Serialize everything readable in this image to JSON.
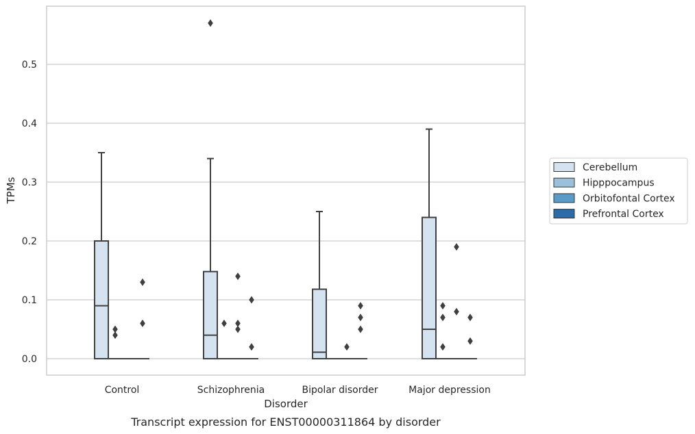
{
  "chart_data": {
    "type": "box",
    "title": "",
    "caption": "Transcript expression for ENST00000311864 by disorder",
    "xlabel": "Disorder",
    "ylabel": "TPMs",
    "ylim": [
      -0.028,
      0.6
    ],
    "yticks": [
      "0.0",
      "0.1",
      "0.2",
      "0.3",
      "0.4",
      "0.5"
    ],
    "ytick_values": [
      0.0,
      0.1,
      0.2,
      0.3,
      0.4,
      0.5
    ],
    "grid": "horizontal",
    "legend_position": "right",
    "categories": [
      "Control",
      "Schizophrenia",
      "Bipolar disorder",
      "Major depression"
    ],
    "series": [
      {
        "name": "Cerebellum",
        "color": "#d5e3f0",
        "boxes": [
          {
            "whislo": 0.0,
            "q1": 0.0,
            "med": 0.09,
            "q3": 0.2,
            "whishi": 0.35,
            "fliers": []
          },
          {
            "whislo": 0.0,
            "q1": 0.0,
            "med": 0.04,
            "q3": 0.148,
            "whishi": 0.34,
            "fliers": [
              0.57
            ]
          },
          {
            "whislo": 0.0,
            "q1": 0.0,
            "med": 0.011,
            "q3": 0.118,
            "whishi": 0.25,
            "fliers": []
          },
          {
            "whislo": 0.0,
            "q1": 0.0,
            "med": 0.05,
            "q3": 0.24,
            "whishi": 0.39,
            "fliers": []
          }
        ]
      },
      {
        "name": "Hipppocampus",
        "color": "#9ac0db",
        "boxes": [
          {
            "whislo": 0.0,
            "q1": 0.0,
            "med": 0.0,
            "q3": 0.0,
            "whishi": 0.0,
            "fliers": [
              0.05,
              0.04
            ]
          },
          {
            "whislo": 0.0,
            "q1": 0.0,
            "med": 0.0,
            "q3": 0.0,
            "whishi": 0.0,
            "fliers": [
              0.06
            ]
          },
          {
            "whislo": 0.0,
            "q1": 0.0,
            "med": 0.0,
            "q3": 0.0,
            "whishi": 0.0,
            "fliers": []
          },
          {
            "whislo": 0.0,
            "q1": 0.0,
            "med": 0.0,
            "q3": 0.0,
            "whishi": 0.0,
            "fliers": [
              0.09,
              0.07,
              0.02
            ]
          }
        ]
      },
      {
        "name": "Orbitofontal Cortex",
        "color": "#5a9bc7",
        "boxes": [
          {
            "whislo": 0.0,
            "q1": 0.0,
            "med": 0.0,
            "q3": 0.0,
            "whishi": 0.0,
            "fliers": []
          },
          {
            "whislo": 0.0,
            "q1": 0.0,
            "med": 0.0,
            "q3": 0.0,
            "whishi": 0.0,
            "fliers": [
              0.14,
              0.06,
              0.05
            ]
          },
          {
            "whislo": 0.0,
            "q1": 0.0,
            "med": 0.0,
            "q3": 0.0,
            "whishi": 0.0,
            "fliers": [
              0.02
            ]
          },
          {
            "whislo": 0.0,
            "q1": 0.0,
            "med": 0.0,
            "q3": 0.0,
            "whishi": 0.0,
            "fliers": [
              0.19,
              0.08
            ]
          }
        ]
      },
      {
        "name": "Prefrontal Cortex",
        "color": "#2b6ca8",
        "boxes": [
          {
            "whislo": 0.0,
            "q1": 0.0,
            "med": 0.0,
            "q3": 0.0,
            "whishi": 0.0,
            "fliers": [
              0.13,
              0.06
            ]
          },
          {
            "whislo": 0.0,
            "q1": 0.0,
            "med": 0.0,
            "q3": 0.0,
            "whishi": 0.0,
            "fliers": [
              0.1,
              0.02
            ]
          },
          {
            "whislo": 0.0,
            "q1": 0.0,
            "med": 0.0,
            "q3": 0.0,
            "whishi": 0.0,
            "fliers": [
              0.09,
              0.07,
              0.05
            ]
          },
          {
            "whislo": 0.0,
            "q1": 0.0,
            "med": 0.0,
            "q3": 0.0,
            "whishi": 0.0,
            "fliers": [
              0.07,
              0.03
            ]
          }
        ]
      }
    ],
    "line_color": "#3f3f3f",
    "grid_color": "#cccccc",
    "frame_color": "#cccccc"
  }
}
